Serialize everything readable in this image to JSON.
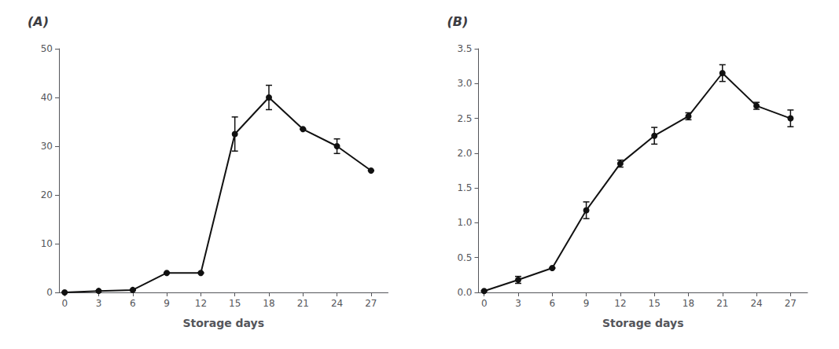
{
  "chart_data": [
    {
      "type": "line",
      "title": "(A)",
      "xlabel": "Storage days",
      "x": [
        0,
        3,
        6,
        9,
        12,
        15,
        18,
        21,
        24,
        27
      ],
      "values": [
        0.0,
        0.3,
        0.5,
        4.0,
        4.0,
        32.5,
        40.0,
        33.5,
        30.0,
        25.0
      ],
      "error": [
        0.0,
        0.0,
        0.0,
        0.0,
        0.0,
        3.5,
        2.5,
        0.0,
        1.5,
        0.0
      ],
      "color": "#111111",
      "marker": "circle",
      "line_style": "solid",
      "xlim": [
        -0.5,
        28.5
      ],
      "xticks": [
        0,
        3,
        6,
        9,
        12,
        15,
        18,
        21,
        24,
        27
      ],
      "ylim": [
        0,
        50
      ],
      "yticks": [
        0,
        10,
        20,
        30,
        40,
        50
      ],
      "grid": false
    },
    {
      "type": "line",
      "title": "(B)",
      "xlabel": "Storage days",
      "x": [
        0,
        3,
        6,
        9,
        12,
        15,
        18,
        21,
        24,
        27
      ],
      "values": [
        0.02,
        0.18,
        0.35,
        1.18,
        1.85,
        2.25,
        2.53,
        3.15,
        2.68,
        2.5
      ],
      "error": [
        0.0,
        0.05,
        0.0,
        0.12,
        0.05,
        0.12,
        0.05,
        0.12,
        0.05,
        0.12
      ],
      "color": "#111111",
      "marker": "circle",
      "line_style": "solid",
      "xlim": [
        -0.5,
        28.5
      ],
      "xticks": [
        0,
        3,
        6,
        9,
        12,
        15,
        18,
        21,
        24,
        27
      ],
      "ylim": [
        0,
        3.5
      ],
      "yticks": [
        {
          "value": 0,
          "label": "0.0"
        },
        0.5,
        {
          "value": 1,
          "label": "1.0"
        },
        1.5,
        {
          "value": 2,
          "label": "2.0"
        },
        2.5,
        {
          "value": 3,
          "label": "3.0"
        },
        3.5
      ],
      "grid": false
    }
  ]
}
